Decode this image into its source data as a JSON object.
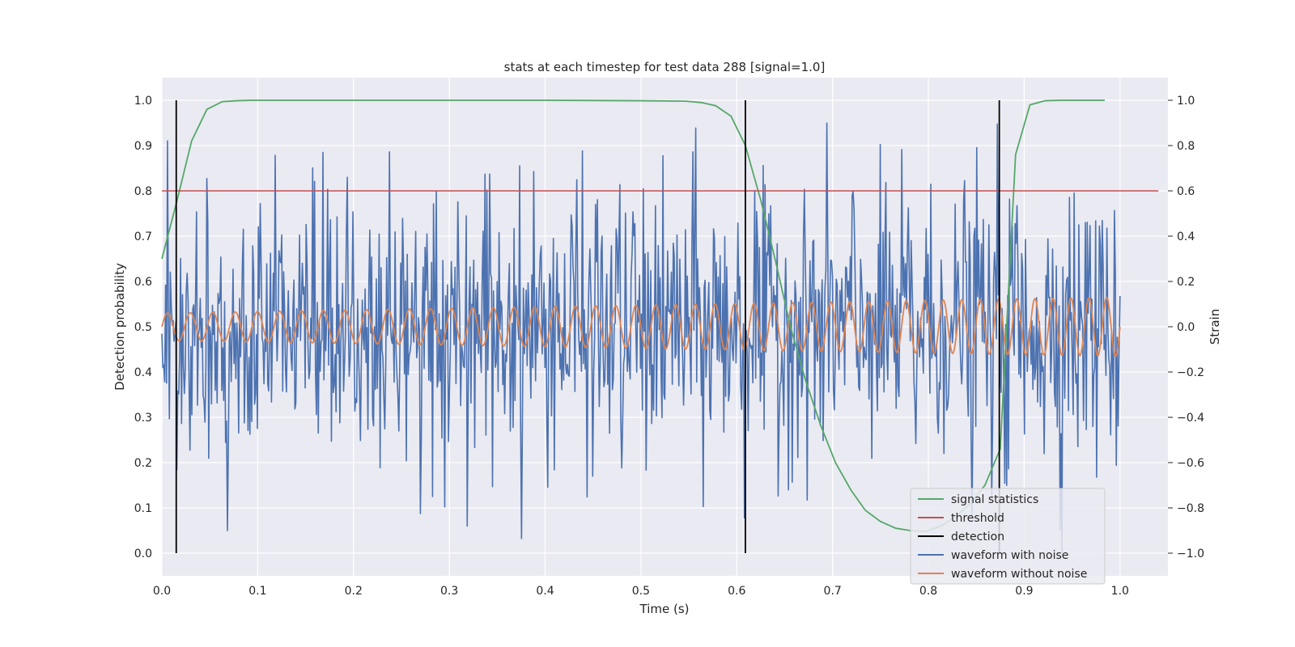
{
  "chart_data": {
    "type": "line",
    "title": "stats at each timestep for test data 288 [signal=1.0]",
    "xlabel": "Time (s)",
    "ylabel": "Detection probability",
    "y2label": "Strain",
    "xlim": [
      0.0,
      1.05
    ],
    "ylim": [
      -0.05,
      1.05
    ],
    "y2lim": [
      -1.1,
      1.1
    ],
    "grid": true,
    "legend_position": "lower-right",
    "x_ticks": [
      "0.0",
      "0.1",
      "0.2",
      "0.3",
      "0.4",
      "0.5",
      "0.6",
      "0.7",
      "0.8",
      "0.9",
      "1.0"
    ],
    "y_ticks": [
      "0.0",
      "0.1",
      "0.2",
      "0.3",
      "0.4",
      "0.5",
      "0.6",
      "0.7",
      "0.8",
      "0.9",
      "1.0"
    ],
    "y2_ticks": [
      "−1.0",
      "−0.8",
      "−0.6",
      "−0.4",
      "−0.2",
      "0.0",
      "0.2",
      "0.4",
      "0.6",
      "0.8",
      "1.0"
    ],
    "colors": {
      "signal_statistics": "#55a868",
      "threshold": "#c44e52",
      "detection": "#000000",
      "waveform_with_noise": "#4c72b0",
      "waveform_without_noise": "#dd8452",
      "plot_background": "#eaeaf2",
      "grid": "#ffffff"
    },
    "series": [
      {
        "name": "signal statistics",
        "axis": "left",
        "x": [
          0.0,
          0.016,
          0.031,
          0.047,
          0.063,
          0.078,
          0.094,
          0.2,
          0.3,
          0.4,
          0.5,
          0.547,
          0.563,
          0.578,
          0.594,
          0.609,
          0.625,
          0.641,
          0.656,
          0.672,
          0.688,
          0.703,
          0.719,
          0.734,
          0.75,
          0.766,
          0.781,
          0.797,
          0.813,
          0.828,
          0.844,
          0.859,
          0.875,
          0.891,
          0.906,
          0.922,
          0.938,
          0.953,
          0.969,
          0.984
        ],
        "y": [
          0.65,
          0.78,
          0.91,
          0.98,
          0.997,
          0.999,
          1.0,
          1.0,
          1.0,
          1.0,
          0.999,
          0.998,
          0.995,
          0.988,
          0.965,
          0.9,
          0.78,
          0.64,
          0.5,
          0.38,
          0.28,
          0.2,
          0.14,
          0.095,
          0.07,
          0.055,
          0.05,
          0.048,
          0.06,
          0.08,
          0.11,
          0.15,
          0.23,
          0.88,
          0.99,
          0.999,
          1.0,
          1.0,
          1.0,
          1.0
        ]
      },
      {
        "name": "threshold",
        "axis": "left",
        "x": [
          0.0,
          1.04
        ],
        "y": [
          0.8,
          0.8
        ]
      },
      {
        "name": "detection",
        "axis": "left",
        "type": "vlines",
        "x": [
          0.015,
          0.609,
          0.874
        ],
        "ymin": 0.0,
        "ymax": 1.0
      },
      {
        "name": "waveform with noise",
        "axis": "right",
        "x_start": 0.0,
        "x_end": 1.0,
        "noise_amplitude": 0.3,
        "peak_max": 0.93,
        "peak_min": -1.0
      },
      {
        "name": "waveform without noise",
        "axis": "right",
        "x_start": 0.0,
        "x_end": 1.0,
        "amplitude_start": 0.06,
        "amplitude_end": 0.13,
        "frequency_start_hz": 42,
        "frequency_end_hz": 54
      }
    ]
  }
}
